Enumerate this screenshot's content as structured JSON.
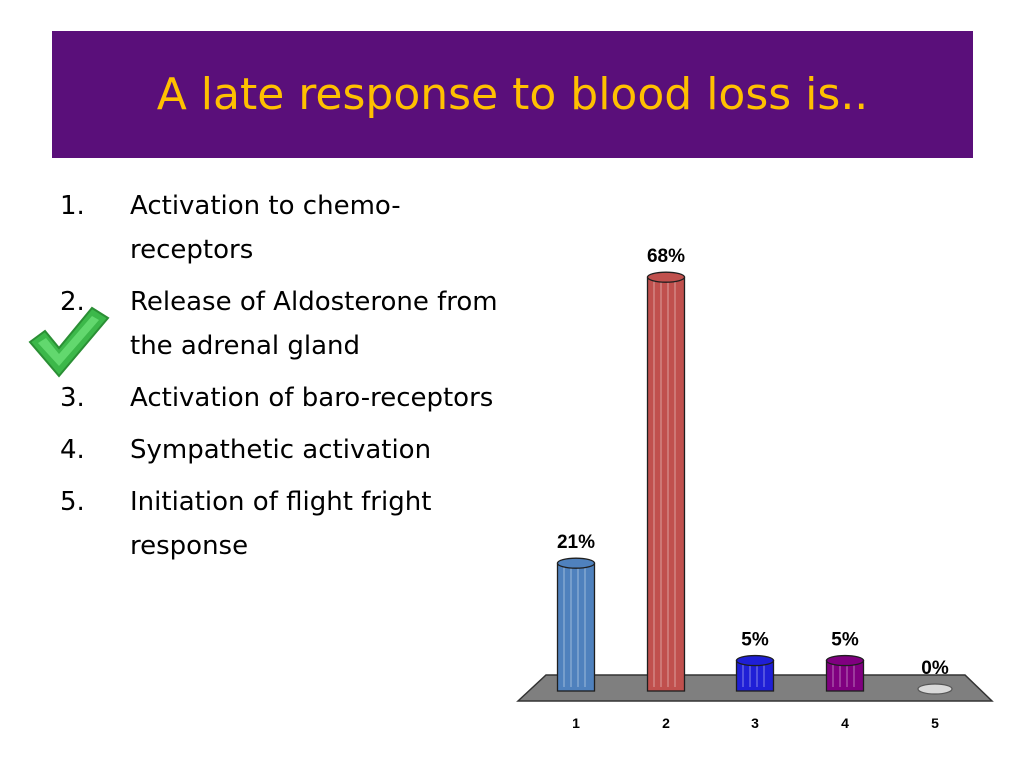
{
  "slide": {
    "title": "A late response to blood loss is..",
    "options": [
      {
        "number": "1.",
        "text": "Activation to chemo-receptors"
      },
      {
        "number": "2.",
        "text": "Release of Aldosterone from the adrenal gland"
      },
      {
        "number": "3.",
        "text": "Activation of baro-receptors"
      },
      {
        "number": "4.",
        "text": "Sympathetic activation"
      },
      {
        "number": "5.",
        "text": "Initiation of flight fright response"
      }
    ],
    "correct_option": 2,
    "checkmark_icon": "checkmark-icon",
    "colors": {
      "title_background": "#5a0f7a",
      "title_text": "#ffc000",
      "checkmark": "#3cb84a"
    }
  },
  "chart_data": {
    "type": "bar",
    "title": "",
    "xlabel": "",
    "ylabel": "",
    "categories": [
      "1",
      "2",
      "3",
      "4",
      "5"
    ],
    "values": [
      21,
      68,
      5,
      5,
      0
    ],
    "value_labels": [
      "21%",
      "68%",
      "5%",
      "5%",
      "0%"
    ],
    "unit": "%",
    "ylim": [
      0,
      70
    ],
    "colors": [
      "#4f81bd",
      "#c0504d",
      "#1f1fd6",
      "#800080",
      "#d9d9d9"
    ],
    "grid": false,
    "legend": "none"
  }
}
